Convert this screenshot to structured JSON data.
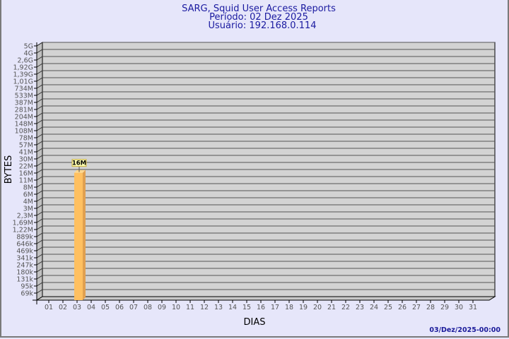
{
  "chart_data": {
    "type": "bar",
    "title": "SARG, Squid User Access Reports",
    "subtitle": [
      "Período: 02 Dez 2025",
      "Usuário: 192.168.0.114"
    ],
    "xlabel": "DIAS",
    "ylabel": "BYTES",
    "y_scale": "log",
    "y_ticks": [
      "69k",
      "95k",
      "131k",
      "180k",
      "247k",
      "341k",
      "469k",
      "646k",
      "889k",
      "1,22M",
      "1,69M",
      "2,3M",
      "3M",
      "4M",
      "6M",
      "8M",
      "11M",
      "16M",
      "22M",
      "30M",
      "41M",
      "57M",
      "78M",
      "108M",
      "148M",
      "204M",
      "281M",
      "387M",
      "533M",
      "734M",
      "1,01G",
      "1,39G",
      "1,92G",
      "2,6G",
      "4G",
      "5G"
    ],
    "categories": [
      "01",
      "02",
      "03",
      "04",
      "05",
      "06",
      "07",
      "08",
      "09",
      "10",
      "11",
      "12",
      "13",
      "14",
      "15",
      "16",
      "17",
      "18",
      "19",
      "20",
      "21",
      "22",
      "23",
      "24",
      "25",
      "26",
      "27",
      "28",
      "29",
      "30",
      "31"
    ],
    "series": [
      {
        "values_labels": {
          "02": "16M"
        },
        "values": {
          "02": 16000000
        }
      }
    ],
    "bar_color": "#ffc060",
    "grid": true,
    "timestamp": "03/Dez/2025-00:00"
  }
}
